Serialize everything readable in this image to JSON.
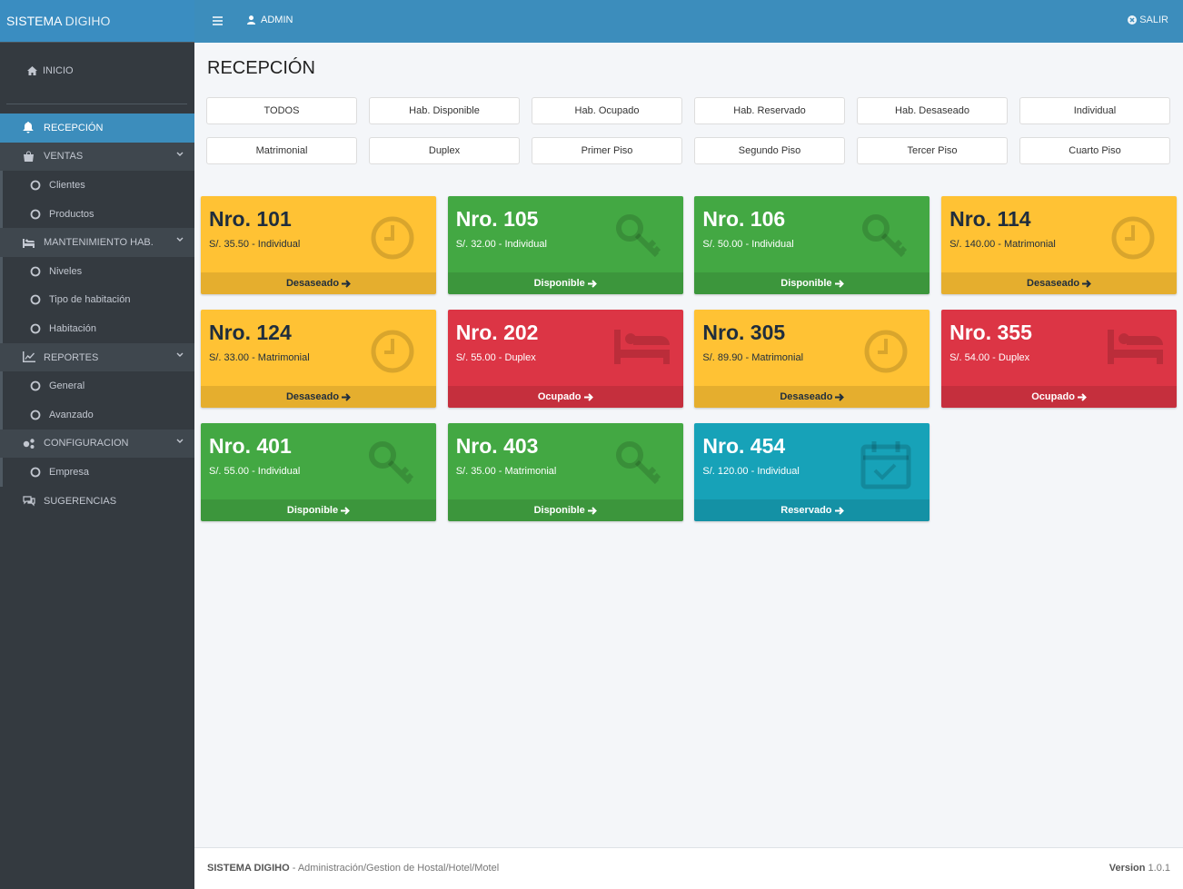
{
  "header": {
    "brand_a": "SISTEMA",
    "brand_b": "DIGIHO",
    "user": "ADMIN",
    "logout": "SALIR"
  },
  "sidebar": {
    "home": "INICIO",
    "menu": [
      {
        "label": "RECEPCIÓN",
        "icon": "bell",
        "active": true
      },
      {
        "label": "VENTAS",
        "icon": "bag",
        "children": [
          "Clientes",
          "Productos"
        ]
      },
      {
        "label": "MANTENIMIENTO HAB.",
        "icon": "bed",
        "children": [
          "Niveles",
          "Tipo de habitación",
          "Habitación"
        ]
      },
      {
        "label": "REPORTES",
        "icon": "chart",
        "children": [
          "General",
          "Avanzado"
        ]
      },
      {
        "label": "CONFIGURACION",
        "icon": "cogs",
        "children": [
          "Empresa"
        ]
      },
      {
        "label": "SUGERENCIAS",
        "icon": "chat"
      }
    ]
  },
  "content": {
    "title": "RECEPCIÓN",
    "filters": [
      "TODOS",
      "Hab. Disponible",
      "Hab. Ocupado",
      "Hab. Reservado",
      "Hab. Desaseado",
      "Individual",
      "Matrimonial",
      "Duplex",
      "Primer Piso",
      "Segundo Piso",
      "Tercer Piso",
      "Cuarto Piso"
    ],
    "rooms": [
      {
        "number": "Nro. 101",
        "detail": "S/. 35.50 - Individual",
        "status": "Desaseado",
        "color": "#ffc234",
        "icon": "clock"
      },
      {
        "number": "Nro. 105",
        "detail": "S/. 32.00 - Individual",
        "status": "Disponible",
        "color": "#43a843",
        "icon": "key"
      },
      {
        "number": "Nro. 106",
        "detail": "S/. 50.00 - Individual",
        "status": "Disponible",
        "color": "#43a843",
        "icon": "key"
      },
      {
        "number": "Nro. 114",
        "detail": "S/. 140.00 - Matrimonial",
        "status": "Desaseado",
        "color": "#ffc234",
        "icon": "clock"
      },
      {
        "number": "Nro. 124",
        "detail": "S/. 33.00 - Matrimonial",
        "status": "Desaseado",
        "color": "#ffc234",
        "icon": "clock"
      },
      {
        "number": "Nro. 202",
        "detail": "S/. 55.00 - Duplex",
        "status": "Ocupado",
        "color": "#dc3545",
        "icon": "bed"
      },
      {
        "number": "Nro. 305",
        "detail": "S/. 89.90 - Matrimonial",
        "status": "Desaseado",
        "color": "#ffc234",
        "icon": "clock"
      },
      {
        "number": "Nro. 355",
        "detail": "S/. 54.00 - Duplex",
        "status": "Ocupado",
        "color": "#dc3545",
        "icon": "bed"
      },
      {
        "number": "Nro. 401",
        "detail": "S/. 55.00 - Individual",
        "status": "Disponible",
        "color": "#43a843",
        "icon": "key"
      },
      {
        "number": "Nro. 403",
        "detail": "S/. 35.00 - Matrimonial",
        "status": "Disponible",
        "color": "#43a843",
        "icon": "key"
      },
      {
        "number": "Nro. 454",
        "detail": "S/. 120.00 - Individual",
        "status": "Reservado",
        "color": "#17a2b8",
        "icon": "calendar"
      }
    ]
  },
  "footer": {
    "brand": "SISTEMA DIGIHO",
    "description": "- Administración/Gestion de Hostal/Hotel/Motel",
    "version_label": "Version",
    "version": "1.0.1"
  }
}
